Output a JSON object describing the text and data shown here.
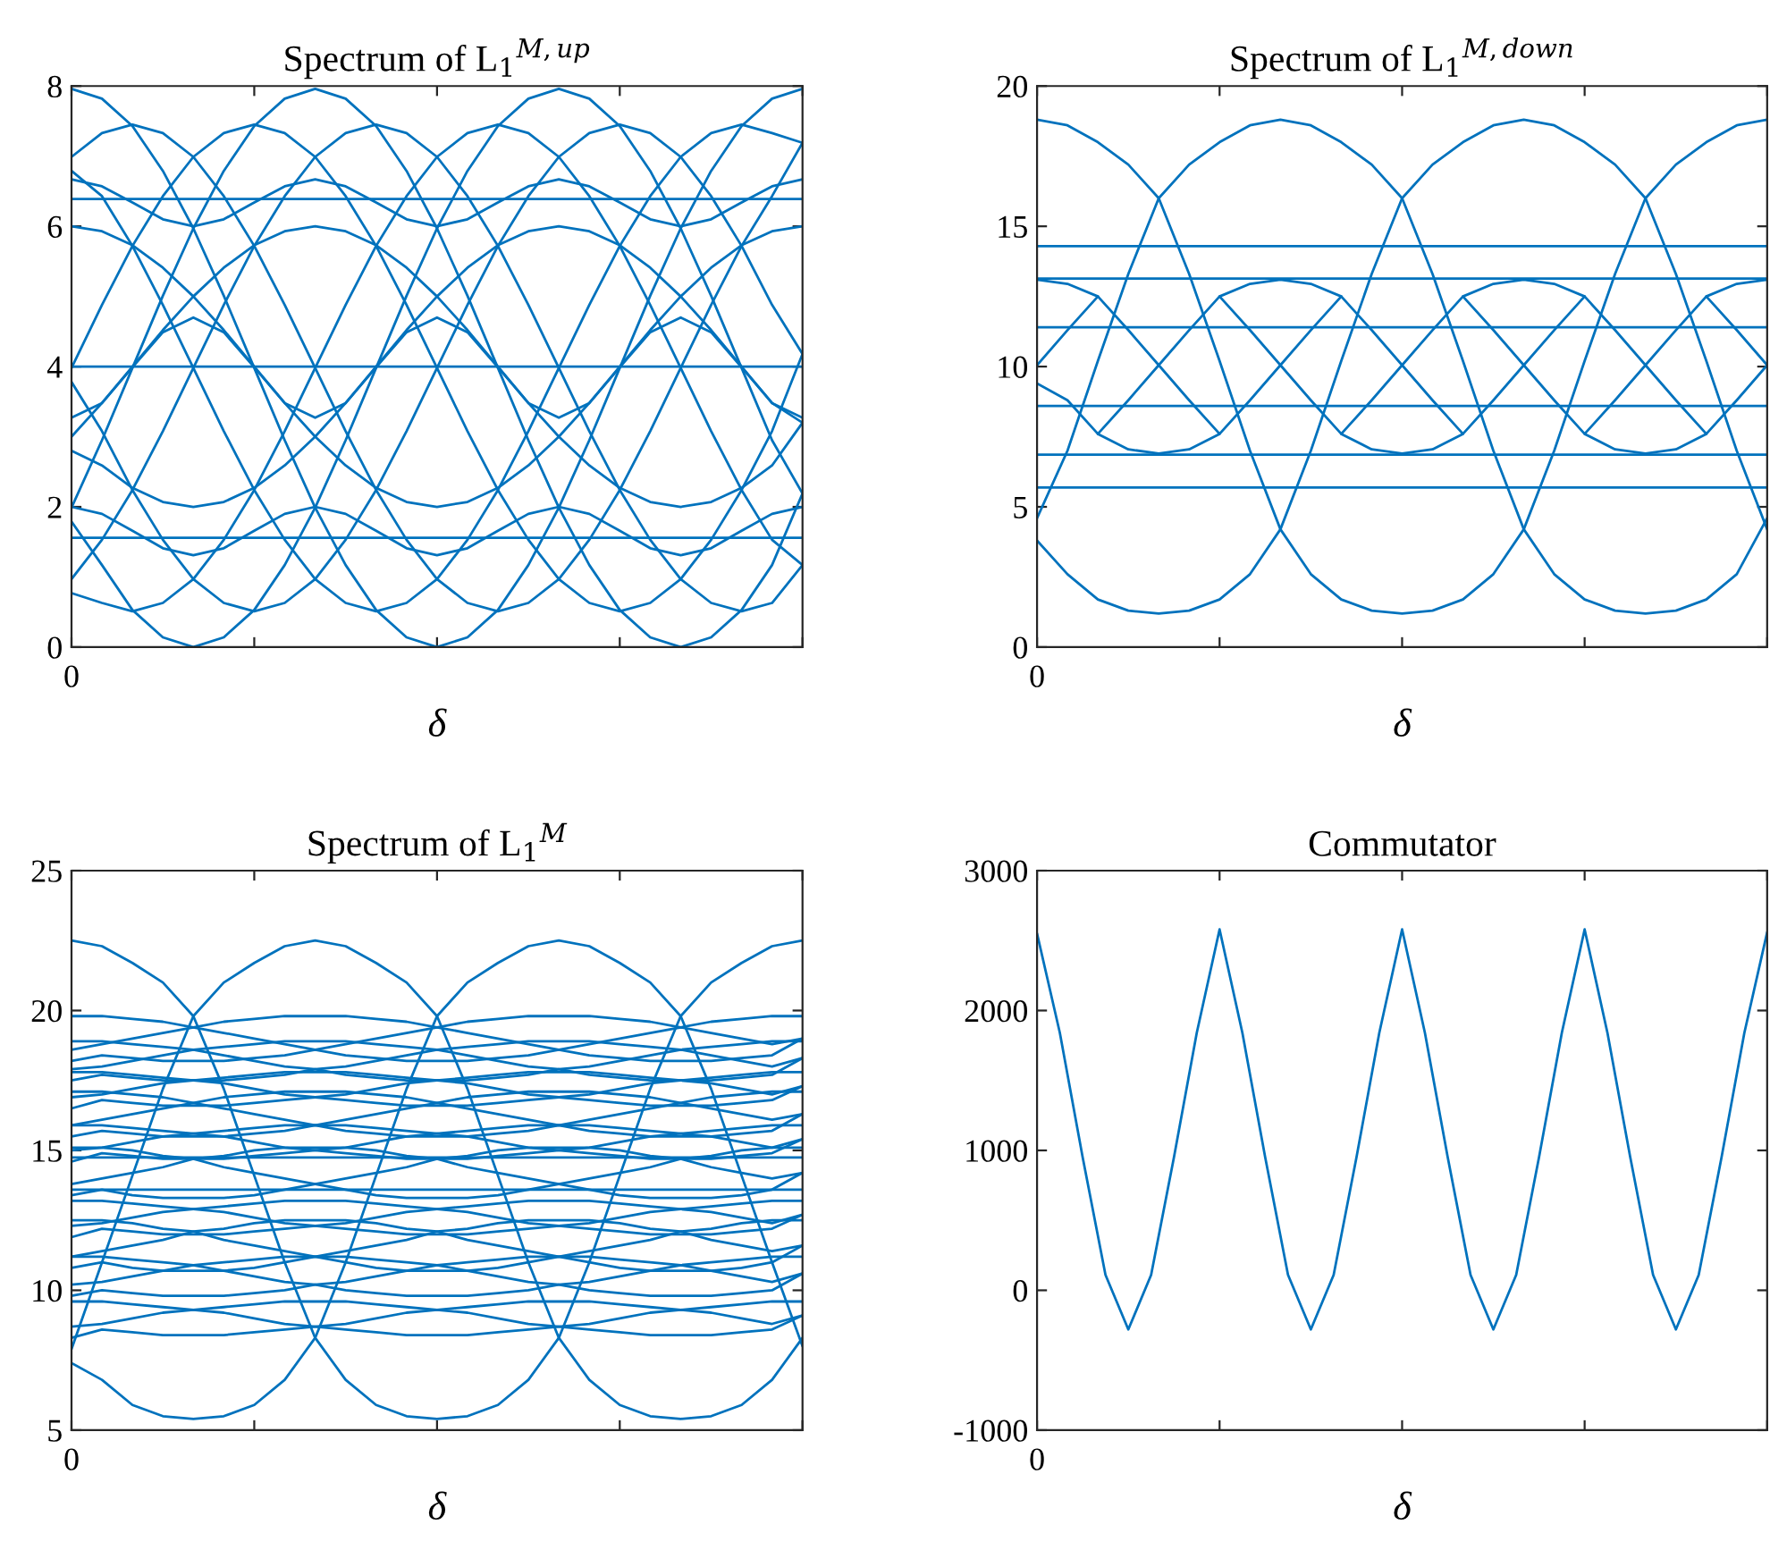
{
  "chart_data": [
    {
      "type": "line",
      "title": "Spectrum of L$_{1}$$^{M,up}$",
      "xlabel": "δ",
      "categories": [
        "0",
        null,
        null,
        null,
        null,
        null,
        null,
        null,
        null,
        null,
        null,
        null,
        null,
        null,
        null,
        null,
        null,
        null,
        null,
        null,
        null,
        null,
        null,
        null,
        null
      ],
      "ylim": [
        0,
        8
      ],
      "yticks": [
        0,
        2,
        4,
        6,
        8
      ],
      "series": [
        {
          "color": "#0072bd",
          "values": [
            7.96,
            7.82,
            7.43,
            6.79,
            5.97,
            5.01,
            3.98,
            2.95,
            1.99,
            1.17,
            0.53,
            0.14,
            0.0,
            0.14,
            0.53,
            1.17,
            1.99,
            2.95,
            3.98,
            5.01,
            5.97,
            6.79,
            7.43,
            7.82,
            7.96
          ]
        },
        {
          "color": "#0072bd",
          "values": [
            1.99,
            2.95,
            3.98,
            5.01,
            5.97,
            6.79,
            7.43,
            7.82,
            7.96,
            7.82,
            7.43,
            6.79,
            5.97,
            5.01,
            3.98,
            2.95,
            1.99,
            1.17,
            0.53,
            0.14,
            0.0,
            0.14,
            0.53,
            1.17,
            2.19
          ]
        },
        {
          "color": "#0072bd",
          "values": [
            1.79,
            1.17,
            0.53,
            0.14,
            0.0,
            0.14,
            0.53,
            1.17,
            1.99,
            2.95,
            3.98,
            5.01,
            5.97,
            6.79,
            7.43,
            7.82,
            7.96,
            7.82,
            7.43,
            6.79,
            5.97,
            5.01,
            3.98,
            2.95,
            2.19
          ]
        },
        {
          "color": "#0072bd",
          "values": [
            6.99,
            7.33,
            7.45,
            7.33,
            6.99,
            6.43,
            5.72,
            4.88,
            3.98,
            3.08,
            2.24,
            1.53,
            0.97,
            0.63,
            0.51,
            0.63,
            0.97,
            1.53,
            2.24,
            3.08,
            3.98,
            4.88,
            5.72,
            6.43,
            7.19
          ]
        },
        {
          "color": "#0072bd",
          "values": [
            3.98,
            4.88,
            5.72,
            6.43,
            6.99,
            7.33,
            7.45,
            7.33,
            6.99,
            6.43,
            5.72,
            4.88,
            3.98,
            3.08,
            2.24,
            1.53,
            0.97,
            0.63,
            0.51,
            0.63,
            0.97,
            1.53,
            2.24,
            3.08,
            4.18
          ]
        },
        {
          "color": "#0072bd",
          "values": [
            0.97,
            1.53,
            2.24,
            3.08,
            3.98,
            4.88,
            5.72,
            6.43,
            6.99,
            7.33,
            7.45,
            7.33,
            6.99,
            6.43,
            5.72,
            4.88,
            3.98,
            3.08,
            2.24,
            1.53,
            0.97,
            0.63,
            0.51,
            0.63,
            1.17
          ]
        },
        {
          "color": "#0072bd",
          "values": [
            0.77,
            0.63,
            0.51,
            0.63,
            0.97,
            1.53,
            2.24,
            3.08,
            3.98,
            4.88,
            5.72,
            6.43,
            6.99,
            7.33,
            7.45,
            7.33,
            6.99,
            6.43,
            5.72,
            4.88,
            3.98,
            3.08,
            2.24,
            1.53,
            1.17
          ]
        },
        {
          "color": "#0072bd",
          "values": [
            3.78,
            3.08,
            2.24,
            1.53,
            0.97,
            0.63,
            0.51,
            0.63,
            0.97,
            1.53,
            2.24,
            3.08,
            3.98,
            4.88,
            5.72,
            6.43,
            6.99,
            7.33,
            7.45,
            7.33,
            6.99,
            6.43,
            5.72,
            4.88,
            4.18
          ]
        },
        {
          "color": "#0072bd",
          "values": [
            6.79,
            6.43,
            5.72,
            4.88,
            3.98,
            3.08,
            2.24,
            1.53,
            0.97,
            0.63,
            0.51,
            0.63,
            0.97,
            1.53,
            2.24,
            3.08,
            3.98,
            4.88,
            5.72,
            6.43,
            6.99,
            7.33,
            7.45,
            7.33,
            7.19
          ]
        },
        {
          "color": "#0072bd",
          "values": [
            6.0,
            5.93,
            5.73,
            5.41,
            5.0,
            4.52,
            4.0,
            3.48,
            3.0,
            2.59,
            2.27,
            2.07,
            2.0,
            2.07,
            2.27,
            2.59,
            3.0,
            3.48,
            4.0,
            4.52,
            5.0,
            5.41,
            5.73,
            5.93,
            6.0
          ]
        },
        {
          "color": "#0072bd",
          "values": [
            3.0,
            3.48,
            4.0,
            4.52,
            5.0,
            5.41,
            5.73,
            5.93,
            6.0,
            5.93,
            5.73,
            5.41,
            5.0,
            4.52,
            4.0,
            3.48,
            3.0,
            2.59,
            2.27,
            2.07,
            2.0,
            2.07,
            2.27,
            2.59,
            3.2
          ]
        },
        {
          "color": "#0072bd",
          "values": [
            2.8,
            2.59,
            2.27,
            2.07,
            2.0,
            2.07,
            2.27,
            2.59,
            3.0,
            3.48,
            4.0,
            4.52,
            5.0,
            5.41,
            5.73,
            5.93,
            6.0,
            5.93,
            5.73,
            5.41,
            5.0,
            4.52,
            4.0,
            3.48,
            3.2
          ]
        },
        {
          "color": "#0072bd",
          "values": [
            6.67,
            6.57,
            6.34,
            6.1,
            6.0,
            6.1,
            6.34,
            6.57,
            6.67,
            6.57,
            6.34,
            6.1,
            6.0,
            6.1,
            6.34,
            6.57,
            6.67,
            6.57,
            6.34,
            6.1,
            6.0,
            6.1,
            6.34,
            6.57,
            6.67
          ]
        },
        {
          "color": "#0072bd",
          "values": [
            3.27,
            3.48,
            3.99,
            4.49,
            4.7,
            4.49,
            3.99,
            3.48,
            3.27,
            3.48,
            3.99,
            4.49,
            4.7,
            4.49,
            3.99,
            3.48,
            3.27,
            3.48,
            3.99,
            4.49,
            4.7,
            4.49,
            3.99,
            3.48,
            3.27
          ]
        },
        {
          "color": "#0072bd",
          "values": [
            2.0,
            1.9,
            1.66,
            1.41,
            1.31,
            1.41,
            1.66,
            1.9,
            2.0,
            1.9,
            1.66,
            1.41,
            1.31,
            1.41,
            1.66,
            1.9,
            2.0,
            1.9,
            1.66,
            1.41,
            1.31,
            1.41,
            1.66,
            1.9,
            2.0
          ]
        },
        {
          "color": "#0072bd",
          "values": [
            6.39,
            6.39,
            6.39,
            6.39,
            6.39,
            6.39,
            6.39,
            6.39,
            6.39,
            6.39,
            6.39,
            6.39,
            6.39,
            6.39,
            6.39,
            6.39,
            6.39,
            6.39,
            6.39,
            6.39,
            6.39,
            6.39,
            6.39,
            6.39,
            6.39
          ]
        },
        {
          "color": "#0072bd",
          "values": [
            4.0,
            4.0,
            4.0,
            4.0,
            4.0,
            4.0,
            4.0,
            4.0,
            4.0,
            4.0,
            4.0,
            4.0,
            4.0,
            4.0,
            4.0,
            4.0,
            4.0,
            4.0,
            4.0,
            4.0,
            4.0,
            4.0,
            4.0,
            4.0,
            4.0
          ]
        },
        {
          "color": "#0072bd",
          "values": [
            1.56,
            1.56,
            1.56,
            1.56,
            1.56,
            1.56,
            1.56,
            1.56,
            1.56,
            1.56,
            1.56,
            1.56,
            1.56,
            1.56,
            1.56,
            1.56,
            1.56,
            1.56,
            1.56,
            1.56,
            1.56,
            1.56,
            1.56,
            1.56,
            1.56
          ]
        }
      ]
    },
    {
      "type": "line",
      "title": "Spectrum of L$_{1}$$^{M,down}$",
      "xlabel": "δ",
      "categories": [
        "0",
        null,
        null,
        null,
        null,
        null,
        null,
        null,
        null,
        null,
        null,
        null,
        null,
        null,
        null,
        null,
        null,
        null,
        null,
        null,
        null,
        null,
        null,
        null,
        null
      ],
      "ylim": [
        0,
        20
      ],
      "yticks": [
        0,
        5,
        10,
        15,
        20
      ],
      "series": [
        {
          "color": "#0072bd",
          "values": [
            18.8,
            18.6,
            18.0,
            17.2,
            16.0,
            13.3,
            10.2,
            7.0,
            4.2,
            2.6,
            1.7,
            1.3,
            1.2,
            1.3,
            1.7,
            2.6,
            4.2,
            7.0,
            10.2,
            13.3,
            16.0,
            17.2,
            18.0,
            18.6,
            18.8
          ]
        },
        {
          "color": "#0072bd",
          "values": [
            4.6,
            7.0,
            10.2,
            13.3,
            16.0,
            17.2,
            18.0,
            18.6,
            18.8,
            18.6,
            18.0,
            17.2,
            16.0,
            13.3,
            10.2,
            7.0,
            4.2,
            2.6,
            1.7,
            1.3,
            1.2,
            1.3,
            1.7,
            2.6,
            4.6
          ]
        },
        {
          "color": "#0072bd",
          "values": [
            3.8,
            2.6,
            1.7,
            1.3,
            1.2,
            1.3,
            1.7,
            2.6,
            4.2,
            7.0,
            10.2,
            13.3,
            16.0,
            17.2,
            18.0,
            18.6,
            18.8,
            18.6,
            18.0,
            17.2,
            16.0,
            13.3,
            10.2,
            7.0,
            4.2
          ]
        },
        {
          "color": "#0072bd",
          "values": [
            10.05,
            11.3,
            12.5,
            11.3,
            10.05,
            8.8,
            7.6,
            8.8,
            10.05,
            11.3,
            12.5,
            11.3,
            10.05,
            8.8,
            7.6,
            8.8,
            10.05,
            11.3,
            12.5,
            11.3,
            10.05,
            8.8,
            7.6,
            8.8,
            10.05
          ]
        },
        {
          "color": "#0072bd",
          "values": [
            9.4,
            8.8,
            7.6,
            8.8,
            10.05,
            11.3,
            12.5,
            11.3,
            10.05,
            8.8,
            7.6,
            8.8,
            10.05,
            11.3,
            12.5,
            11.3,
            10.05,
            8.8,
            7.6,
            8.8,
            10.05,
            11.3,
            12.5,
            11.3,
            10.05
          ]
        },
        {
          "color": "#0072bd",
          "values": [
            13.1,
            12.95,
            12.5,
            null,
            null,
            null,
            null,
            null,
            null,
            null,
            null,
            null,
            null,
            null,
            null,
            null,
            null,
            null,
            null,
            null,
            null,
            null,
            null,
            null,
            null
          ]
        },
        {
          "color": "#0072bd",
          "values": [
            null,
            null,
            null,
            null,
            null,
            null,
            12.5,
            12.95,
            13.1,
            12.95,
            12.5,
            null,
            null,
            null,
            12.5,
            12.95,
            13.1,
            12.95,
            12.5,
            null,
            null,
            null,
            12.5,
            12.95,
            13.1
          ]
        },
        {
          "color": "#0072bd",
          "values": [
            null,
            null,
            7.6,
            7.05,
            6.9,
            7.05,
            7.6,
            null,
            null,
            null,
            7.6,
            7.05,
            6.9,
            7.05,
            7.6,
            null,
            null,
            null,
            7.6,
            7.05,
            6.9,
            7.05,
            7.6,
            null,
            null
          ]
        },
        {
          "color": "#0072bd",
          "values": [
            14.29,
            14.29,
            14.29,
            14.29,
            14.29,
            14.29,
            14.29,
            14.29,
            14.29,
            14.29,
            14.29,
            14.29,
            14.29,
            14.29,
            14.29,
            14.29,
            14.29,
            14.29,
            14.29,
            14.29,
            14.29,
            14.29,
            14.29,
            14.29,
            14.29
          ]
        },
        {
          "color": "#0072bd",
          "values": [
            13.14,
            13.14,
            13.14,
            13.14,
            13.14,
            13.14,
            13.14,
            13.14,
            13.14,
            13.14,
            13.14,
            13.14,
            13.14,
            13.14,
            13.14,
            13.14,
            13.14,
            13.14,
            13.14,
            13.14,
            13.14,
            13.14,
            13.14,
            13.14,
            13.14
          ]
        },
        {
          "color": "#0072bd",
          "values": [
            11.4,
            11.4,
            11.4,
            11.4,
            11.4,
            11.4,
            11.4,
            11.4,
            11.4,
            11.4,
            11.4,
            11.4,
            11.4,
            11.4,
            11.4,
            11.4,
            11.4,
            11.4,
            11.4,
            11.4,
            11.4,
            11.4,
            11.4,
            11.4,
            11.4
          ]
        },
        {
          "color": "#0072bd",
          "values": [
            8.6,
            8.6,
            8.6,
            8.6,
            8.6,
            8.6,
            8.6,
            8.6,
            8.6,
            8.6,
            8.6,
            8.6,
            8.6,
            8.6,
            8.6,
            8.6,
            8.6,
            8.6,
            8.6,
            8.6,
            8.6,
            8.6,
            8.6,
            8.6,
            8.6
          ]
        },
        {
          "color": "#0072bd",
          "values": [
            6.86,
            6.86,
            6.86,
            6.86,
            6.86,
            6.86,
            6.86,
            6.86,
            6.86,
            6.86,
            6.86,
            6.86,
            6.86,
            6.86,
            6.86,
            6.86,
            6.86,
            6.86,
            6.86,
            6.86,
            6.86,
            6.86,
            6.86,
            6.86,
            6.86
          ]
        },
        {
          "color": "#0072bd",
          "values": [
            5.69,
            5.69,
            5.69,
            5.69,
            5.69,
            5.69,
            5.69,
            5.69,
            5.69,
            5.69,
            5.69,
            5.69,
            5.69,
            5.69,
            5.69,
            5.69,
            5.69,
            5.69,
            5.69,
            5.69,
            5.69,
            5.69,
            5.69,
            5.69,
            5.69
          ]
        }
      ]
    },
    {
      "type": "line",
      "title": "Spectrum of L$_{1}$$^{M}$",
      "xlabel": "δ",
      "categories": [
        "0",
        null,
        null,
        null,
        null,
        null,
        null,
        null,
        null,
        null,
        null,
        null,
        null,
        null,
        null,
        null,
        null,
        null,
        null,
        null,
        null,
        null,
        null,
        null,
        null
      ],
      "ylim": [
        5,
        25
      ],
      "yticks": [
        5,
        10,
        15,
        20,
        25
      ],
      "series": [
        {
          "color": "#0072bd",
          "values": [
            22.5,
            22.3,
            21.7,
            21.0,
            19.8,
            17.2,
            14.1,
            11.0,
            8.3,
            6.8,
            5.9,
            5.5,
            5.4,
            5.5,
            5.9,
            6.8,
            8.3,
            11.0,
            14.1,
            17.2,
            19.8,
            21.0,
            21.7,
            22.3,
            22.5
          ]
        },
        {
          "color": "#0072bd",
          "values": [
            7.9,
            11.0,
            14.1,
            17.2,
            19.8,
            21.0,
            21.7,
            22.3,
            22.5,
            22.3,
            21.7,
            21.0,
            19.8,
            17.2,
            14.1,
            11.0,
            8.3,
            6.8,
            5.9,
            5.5,
            5.4,
            5.5,
            5.9,
            6.8,
            8.3
          ]
        },
        {
          "color": "#0072bd",
          "values": [
            7.4,
            6.8,
            5.9,
            5.5,
            5.4,
            5.5,
            5.9,
            6.8,
            8.3,
            11.0,
            14.1,
            17.2,
            19.8,
            21.0,
            21.7,
            22.3,
            22.5,
            22.3,
            21.7,
            21.0,
            19.8,
            17.2,
            14.1,
            11.0,
            8.0
          ]
        },
        {
          "color": "#0072bd",
          "values": [
            19.8,
            19.8,
            19.7,
            19.6,
            19.4,
            19.2,
            19.0,
            18.8,
            18.6,
            18.4,
            18.3,
            18.2,
            18.2,
            18.2,
            18.3,
            18.4,
            18.6,
            18.8,
            19.0,
            19.2,
            19.4,
            19.6,
            19.7,
            19.8,
            19.8
          ]
        },
        {
          "color": "#0072bd",
          "values": [
            18.6,
            18.8,
            19.0,
            19.2,
            19.4,
            19.6,
            19.7,
            19.8,
            19.8,
            19.8,
            19.7,
            19.6,
            19.4,
            19.2,
            19.0,
            18.8,
            18.6,
            18.4,
            18.3,
            18.2,
            18.2,
            18.2,
            18.3,
            18.4,
            19.0
          ]
        },
        {
          "color": "#0072bd",
          "values": [
            18.2,
            18.4,
            18.3,
            18.2,
            18.2,
            18.2,
            18.3,
            18.4,
            18.6,
            18.8,
            19.0,
            19.2,
            19.4,
            19.6,
            19.7,
            19.8,
            19.8,
            19.8,
            19.7,
            19.6,
            19.4,
            19.2,
            19.0,
            18.8,
            19.0
          ]
        },
        {
          "color": "#0072bd",
          "values": [
            18.9,
            18.9,
            18.8,
            18.7,
            18.6,
            18.4,
            18.2,
            18.0,
            17.9,
            17.7,
            17.6,
            17.5,
            17.5,
            17.5,
            17.6,
            17.7,
            17.9,
            18.0,
            18.2,
            18.4,
            18.6,
            18.7,
            18.8,
            18.9,
            18.9
          ]
        },
        {
          "color": "#0072bd",
          "values": [
            17.9,
            18.0,
            18.2,
            18.4,
            18.6,
            18.7,
            18.8,
            18.9,
            18.9,
            18.9,
            18.8,
            18.7,
            18.6,
            18.4,
            18.2,
            18.0,
            17.9,
            17.7,
            17.6,
            17.5,
            17.5,
            17.5,
            17.6,
            17.7,
            18.3
          ]
        },
        {
          "color": "#0072bd",
          "values": [
            17.5,
            17.7,
            17.6,
            17.5,
            17.5,
            17.5,
            17.6,
            17.7,
            17.9,
            18.0,
            18.2,
            18.4,
            18.6,
            18.7,
            18.8,
            18.9,
            18.9,
            18.9,
            18.8,
            18.7,
            18.6,
            18.4,
            18.2,
            18.0,
            18.3
          ]
        },
        {
          "color": "#0072bd",
          "values": [
            17.8,
            17.8,
            17.7,
            17.6,
            17.5,
            17.4,
            17.2,
            17.0,
            16.9,
            16.8,
            16.7,
            16.6,
            16.6,
            16.6,
            16.7,
            16.8,
            16.9,
            17.0,
            17.2,
            17.4,
            17.5,
            17.6,
            17.7,
            17.8,
            17.8
          ]
        },
        {
          "color": "#0072bd",
          "values": [
            16.9,
            17.0,
            17.2,
            17.4,
            17.5,
            17.6,
            17.7,
            17.8,
            17.8,
            17.8,
            17.7,
            17.6,
            17.5,
            17.4,
            17.2,
            17.0,
            16.9,
            16.8,
            16.7,
            16.6,
            16.6,
            16.6,
            16.7,
            16.8,
            17.3
          ]
        },
        {
          "color": "#0072bd",
          "values": [
            16.5,
            16.8,
            16.7,
            16.6,
            16.6,
            16.6,
            16.7,
            16.8,
            16.9,
            17.0,
            17.2,
            17.4,
            17.5,
            17.6,
            17.7,
            17.8,
            17.8,
            17.8,
            17.7,
            17.6,
            17.5,
            17.4,
            17.2,
            17.0,
            17.3
          ]
        },
        {
          "color": "#0072bd",
          "values": [
            17.1,
            17.1,
            17.0,
            16.9,
            16.7,
            16.5,
            16.3,
            16.1,
            15.9,
            15.7,
            15.6,
            15.5,
            15.5,
            15.5,
            15.6,
            15.7,
            15.9,
            16.1,
            16.3,
            16.5,
            16.7,
            16.9,
            17.0,
            17.1,
            17.1
          ]
        },
        {
          "color": "#0072bd",
          "values": [
            15.9,
            16.1,
            16.3,
            16.5,
            16.7,
            16.9,
            17.0,
            17.1,
            17.1,
            17.1,
            17.0,
            16.9,
            16.7,
            16.5,
            16.3,
            16.1,
            15.9,
            15.7,
            15.6,
            15.5,
            15.5,
            15.5,
            15.6,
            15.7,
            16.3
          ]
        },
        {
          "color": "#0072bd",
          "values": [
            15.5,
            15.7,
            15.6,
            15.5,
            15.5,
            15.5,
            15.6,
            15.7,
            15.9,
            16.1,
            16.3,
            16.5,
            16.7,
            16.9,
            17.0,
            17.1,
            17.1,
            17.1,
            17.0,
            16.9,
            16.7,
            16.5,
            16.3,
            16.1,
            16.3
          ]
        },
        {
          "color": "#0072bd",
          "values": [
            15.9,
            15.9,
            15.8,
            15.7,
            15.6,
            15.5,
            15.3,
            15.1,
            15.0,
            14.9,
            14.8,
            14.7,
            14.7,
            14.7,
            14.8,
            14.9,
            15.0,
            15.1,
            15.3,
            15.5,
            15.6,
            15.7,
            15.8,
            15.9,
            15.9
          ]
        },
        {
          "color": "#0072bd",
          "values": [
            15.0,
            15.1,
            15.3,
            15.5,
            15.6,
            15.7,
            15.8,
            15.9,
            15.9,
            15.9,
            15.8,
            15.7,
            15.6,
            15.5,
            15.3,
            15.1,
            15.0,
            14.9,
            14.8,
            14.7,
            14.7,
            14.7,
            14.8,
            14.9,
            15.4
          ]
        },
        {
          "color": "#0072bd",
          "values": [
            14.6,
            14.9,
            14.8,
            14.7,
            14.7,
            14.7,
            14.8,
            14.9,
            15.0,
            15.1,
            15.3,
            15.5,
            15.6,
            15.7,
            15.8,
            15.9,
            15.9,
            15.9,
            15.8,
            15.7,
            15.6,
            15.5,
            15.3,
            15.1,
            15.4
          ]
        },
        {
          "color": "#0072bd",
          "values": [
            15.1,
            15.1,
            15.0,
            14.8,
            14.7,
            14.4,
            14.2,
            14.0,
            13.8,
            13.6,
            13.4,
            13.3,
            13.3,
            13.3,
            13.4,
            13.6,
            13.8,
            14.0,
            14.2,
            14.4,
            14.7,
            14.8,
            15.0,
            15.1,
            15.1
          ]
        },
        {
          "color": "#0072bd",
          "values": [
            13.8,
            14.0,
            14.2,
            14.4,
            14.7,
            14.8,
            15.0,
            15.1,
            15.1,
            15.1,
            15.0,
            14.8,
            14.7,
            14.4,
            14.2,
            14.0,
            13.8,
            13.6,
            13.4,
            13.3,
            13.3,
            13.3,
            13.4,
            13.6,
            14.2
          ]
        },
        {
          "color": "#0072bd",
          "values": [
            13.4,
            13.6,
            13.4,
            13.3,
            13.3,
            13.3,
            13.4,
            13.6,
            13.8,
            14.0,
            14.2,
            14.4,
            14.7,
            14.8,
            15.0,
            15.1,
            15.1,
            15.1,
            15.0,
            14.8,
            14.7,
            14.4,
            14.2,
            14.0,
            14.2
          ]
        },
        {
          "color": "#0072bd",
          "values": [
            13.2,
            13.2,
            13.1,
            13.0,
            12.9,
            12.8,
            12.6,
            12.4,
            12.3,
            12.2,
            12.1,
            12.0,
            12.0,
            12.0,
            12.1,
            12.2,
            12.3,
            12.4,
            12.6,
            12.8,
            12.9,
            13.0,
            13.1,
            13.2,
            13.2
          ]
        },
        {
          "color": "#0072bd",
          "values": [
            12.3,
            12.4,
            12.6,
            12.8,
            12.9,
            13.0,
            13.1,
            13.2,
            13.2,
            13.2,
            13.1,
            13.0,
            12.9,
            12.8,
            12.6,
            12.4,
            12.3,
            12.2,
            12.1,
            12.0,
            12.0,
            12.0,
            12.1,
            12.2,
            12.7
          ]
        },
        {
          "color": "#0072bd",
          "values": [
            11.9,
            12.2,
            12.1,
            12.0,
            12.0,
            12.0,
            12.1,
            12.2,
            12.3,
            12.4,
            12.6,
            12.8,
            12.9,
            13.0,
            13.1,
            13.2,
            13.2,
            13.2,
            13.1,
            13.0,
            12.9,
            12.8,
            12.6,
            12.4,
            12.7
          ]
        },
        {
          "color": "#0072bd",
          "values": [
            12.5,
            12.5,
            12.4,
            12.2,
            12.1,
            11.8,
            11.6,
            11.4,
            11.2,
            11.0,
            10.8,
            10.7,
            10.7,
            10.7,
            10.8,
            11.0,
            11.2,
            11.4,
            11.6,
            11.8,
            12.1,
            12.2,
            12.4,
            12.5,
            12.5
          ]
        },
        {
          "color": "#0072bd",
          "values": [
            11.2,
            11.4,
            11.6,
            11.8,
            12.1,
            12.2,
            12.4,
            12.5,
            12.5,
            12.5,
            12.4,
            12.2,
            12.1,
            11.8,
            11.6,
            11.4,
            11.2,
            11.0,
            10.8,
            10.7,
            10.7,
            10.7,
            10.8,
            11.0,
            11.6
          ]
        },
        {
          "color": "#0072bd",
          "values": [
            10.8,
            11.0,
            10.8,
            10.7,
            10.7,
            10.7,
            10.8,
            11.0,
            11.2,
            11.4,
            11.6,
            11.8,
            12.1,
            12.2,
            12.4,
            12.5,
            12.5,
            12.5,
            12.4,
            12.2,
            12.1,
            11.8,
            11.6,
            11.4,
            11.6
          ]
        },
        {
          "color": "#0072bd",
          "values": [
            11.2,
            11.2,
            11.1,
            11.0,
            10.9,
            10.7,
            10.5,
            10.3,
            10.2,
            10.0,
            9.9,
            9.8,
            9.8,
            9.8,
            9.9,
            10.0,
            10.2,
            10.3,
            10.5,
            10.7,
            10.9,
            11.0,
            11.1,
            11.2,
            11.2
          ]
        },
        {
          "color": "#0072bd",
          "values": [
            10.2,
            10.3,
            10.5,
            10.7,
            10.9,
            11.0,
            11.1,
            11.2,
            11.2,
            11.2,
            11.1,
            11.0,
            10.9,
            10.7,
            10.5,
            10.3,
            10.2,
            10.0,
            9.9,
            9.8,
            9.8,
            9.8,
            9.9,
            10.0,
            10.6
          ]
        },
        {
          "color": "#0072bd",
          "values": [
            9.8,
            10.0,
            9.9,
            9.8,
            9.8,
            9.8,
            9.9,
            10.0,
            10.2,
            10.3,
            10.5,
            10.7,
            10.9,
            11.0,
            11.1,
            11.2,
            11.2,
            11.2,
            11.1,
            11.0,
            10.9,
            10.7,
            10.5,
            10.3,
            10.6
          ]
        },
        {
          "color": "#0072bd",
          "values": [
            9.6,
            9.6,
            9.5,
            9.4,
            9.3,
            9.2,
            9.0,
            8.8,
            8.7,
            8.6,
            8.5,
            8.4,
            8.4,
            8.4,
            8.5,
            8.6,
            8.7,
            8.8,
            9.0,
            9.2,
            9.3,
            9.4,
            9.5,
            9.6,
            9.6
          ]
        },
        {
          "color": "#0072bd",
          "values": [
            8.7,
            8.8,
            9.0,
            9.2,
            9.3,
            9.4,
            9.5,
            9.6,
            9.6,
            9.6,
            9.5,
            9.4,
            9.3,
            9.2,
            9.0,
            8.8,
            8.7,
            8.6,
            8.5,
            8.4,
            8.4,
            8.4,
            8.5,
            8.6,
            9.1
          ]
        },
        {
          "color": "#0072bd",
          "values": [
            8.3,
            8.6,
            8.5,
            8.4,
            8.4,
            8.4,
            8.5,
            8.6,
            8.7,
            8.8,
            9.0,
            9.2,
            9.3,
            9.4,
            9.5,
            9.6,
            9.6,
            9.6,
            9.5,
            9.4,
            9.3,
            9.2,
            9.0,
            8.8,
            9.1
          ]
        },
        {
          "color": "#0072bd",
          "values": [
            14.75,
            14.75,
            14.75,
            14.75,
            14.75,
            14.75,
            14.75,
            14.75,
            14.75,
            14.75,
            14.75,
            14.75,
            14.75,
            14.75,
            14.75,
            14.75,
            14.75,
            14.75,
            14.75,
            14.75,
            14.75,
            14.75,
            14.75,
            14.75,
            14.75
          ]
        },
        {
          "color": "#0072bd",
          "values": [
            13.6,
            13.6,
            13.6,
            13.6,
            13.6,
            13.6,
            13.6,
            13.6,
            13.6,
            13.6,
            13.6,
            13.6,
            13.6,
            13.6,
            13.6,
            13.6,
            13.6,
            13.6,
            13.6,
            13.6,
            13.6,
            13.6,
            13.6,
            13.6,
            13.6
          ]
        }
      ]
    },
    {
      "type": "line",
      "title": "Commutator",
      "xlabel": "δ",
      "categories": [
        "0",
        null,
        null,
        null,
        null,
        null,
        null,
        null,
        null,
        null,
        null,
        null,
        null,
        null,
        null,
        null,
        null,
        null,
        null,
        null,
        null,
        null,
        null,
        null,
        null,
        null,
        null,
        null,
        null,
        null,
        null,
        null,
        null
      ],
      "ylim": [
        -1000,
        3000
      ],
      "yticks": [
        -1000,
        0,
        1000,
        2000,
        3000
      ],
      "series": [
        {
          "color": "#0072bd",
          "values": [
            2550,
            1840,
            950,
            110,
            -280,
            110,
            950,
            1840,
            2580,
            1840,
            950,
            110,
            -280,
            110,
            950,
            1840,
            2580,
            1840,
            950,
            110,
            -280,
            110,
            950,
            1840,
            2580,
            1840,
            950,
            110,
            -280,
            110,
            950,
            1840,
            2560
          ]
        }
      ]
    }
  ]
}
